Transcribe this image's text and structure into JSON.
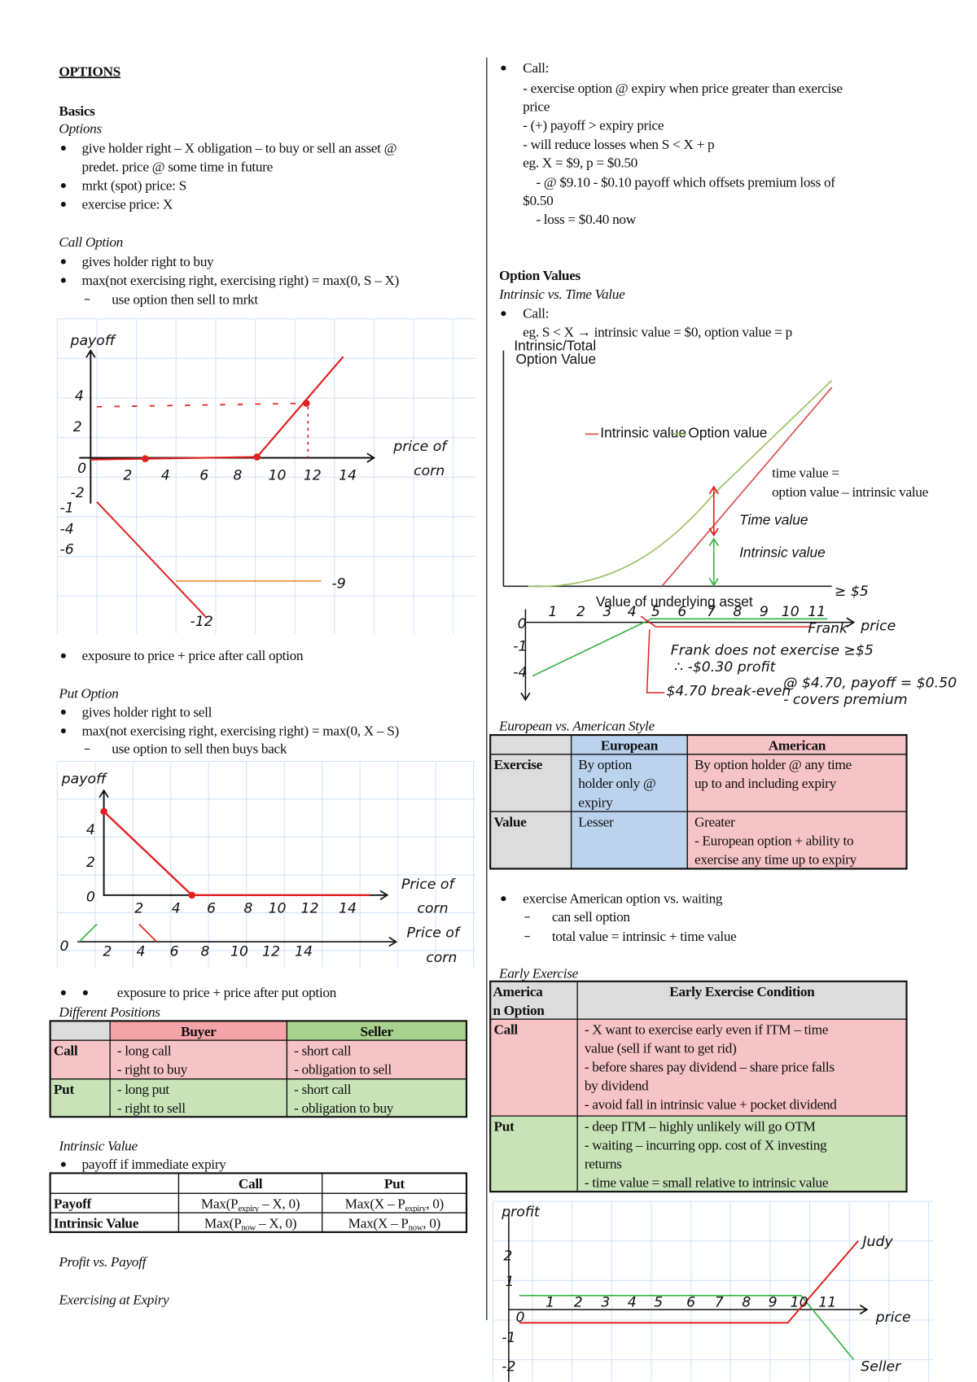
{
  "left": {
    "title": "OPTIONS",
    "basics": {
      "heading": "Basics",
      "subheading": "Options",
      "bullets": [
        [
          "give holder right – X obligation – to buy or sell an asset @",
          "predet. price @ some time in future"
        ],
        [
          "mrkt (spot) price: S"
        ],
        [
          "exercise price: X"
        ]
      ]
    },
    "call_option": {
      "heading": "Call Option",
      "bullets": [
        [
          "gives holder right to buy"
        ],
        [
          "max(not exercising right, exercising right) = max(0, S – X)"
        ]
      ],
      "sub_bullet": "use option then sell to mrkt",
      "diagram": {
        "y_label": "payoff",
        "x_label": [
          "price of",
          "corn"
        ],
        "y_ticks": [
          "4",
          "2",
          "0",
          "-2"
        ],
        "x_ticks": [
          "2",
          "4",
          "6",
          "8",
          "10",
          "12",
          "14"
        ],
        "lower_y_ticks": [
          "-1",
          "-4",
          "-6"
        ],
        "labels": [
          "-9",
          "-12"
        ]
      },
      "note": "exposure to price + price after call option"
    },
    "put_option": {
      "heading": "Put Option",
      "bullets": [
        [
          "gives holder right to sell"
        ],
        [
          "max(not exercising right, exercising right) = max(0, X – S)"
        ]
      ],
      "sub_bullet": "use option to sell then buys back",
      "diagram": {
        "y_label": "payoff",
        "x_label": [
          "Price of",
          "corn"
        ],
        "y_ticks": [
          "4",
          "2",
          "0"
        ],
        "x_ticks": [
          "2",
          "4",
          "6",
          "8",
          "10",
          "12",
          "14"
        ],
        "second_axis": {
          "origin": "0",
          "x_ticks": [
            "2",
            "4",
            "6",
            "8",
            "10",
            "12",
            "14"
          ],
          "x_label": [
            "Price of",
            "corn"
          ]
        }
      },
      "note": "exposure to price + price after put option"
    },
    "positions": {
      "heading": "Different Positions",
      "table": {
        "header": [
          "Buyer",
          "Seller"
        ],
        "rows": [
          {
            "label": "Call",
            "cells": [
              [
                "- long call",
                "- right to buy"
              ],
              [
                "- short call",
                "- obligation to sell"
              ]
            ]
          },
          {
            "label": "Put",
            "cells": [
              [
                "- long put",
                "- right to sell"
              ],
              [
                "- short call",
                "- obligation to buy"
              ]
            ]
          }
        ]
      }
    },
    "intrinsic": {
      "heading": "Intrinsic Value",
      "bullet": "payoff if immediate expiry",
      "table": {
        "header": [
          "Call",
          "Put"
        ],
        "rows": [
          {
            "label": "Payoff",
            "cells": [
              [
                "Max(P",
                "expiry",
                " – X, 0)"
              ],
              [
                "Max(X – P",
                "expiry",
                ", 0)"
              ]
            ]
          },
          {
            "label": "Intrinsic Value",
            "cells": [
              [
                "Max(P",
                "now",
                " – X, 0)"
              ],
              [
                "Max(X – P",
                "now",
                ", 0)"
              ]
            ]
          }
        ]
      }
    },
    "footer_headings": [
      "Profit vs. Payoff",
      "Exercising at Expiry"
    ]
  },
  "right": {
    "call": {
      "bullet": "Call:",
      "lines": [
        "- exercise option @ expiry when price greater than exercise",
        "price",
        "- (+) payoff > expiry price",
        "- will reduce losses when S < X + p",
        "eg. X = $9, p = $0.50",
        "- @ $9.10 - $0.10 payoff which offsets premium loss of",
        "$0.50",
        "- loss = $0.40 now"
      ]
    },
    "option_values": {
      "heading": "Option Values",
      "subheading": "Intrinsic vs. Time Value",
      "bullet": "Call:",
      "example": "eg. S < X → intrinsic value = $0, option value = p",
      "chart": {
        "y_label": [
          "Intrinsic/Total",
          "Option Value"
        ],
        "legend": [
          "Intrinsic value",
          "Option value"
        ],
        "x_label": "Value of underlying asset",
        "time_value_label": "Time value",
        "intrinsic_value_label": "Intrinsic value",
        "definition": [
          "time value =",
          "option value – intrinsic value"
        ],
        "note": "≥ $5"
      },
      "frank": {
        "x_label": "price",
        "x_ticks": [
          "1",
          "2",
          "3",
          "4",
          "5",
          "6",
          "7",
          "8",
          "9",
          "10",
          "11"
        ],
        "y_ticks": [
          "0",
          "-1",
          "-4"
        ],
        "series_label": "Frank",
        "notes": [
          "Frank does not exercise ≥$5",
          "∴ -$0.30 profit",
          "$4.70 break-even",
          "@ $4.70, payoff = $0.50",
          "- covers premium"
        ]
      }
    },
    "style": {
      "heading": "European vs. American Style",
      "table": {
        "header": [
          "European",
          "American"
        ],
        "rows": [
          {
            "label": "Exercise",
            "cells": [
              [
                "By option",
                "holder only @",
                "expiry"
              ],
              [
                "By option holder @ any time",
                "up to and including expiry"
              ]
            ]
          },
          {
            "label": "Value",
            "cells": [
              [
                "Lesser"
              ],
              [
                "Greater",
                "- European option + ability to",
                "exercise any time up to expiry"
              ]
            ]
          }
        ]
      }
    },
    "american": {
      "bullet": "exercise American option vs. waiting",
      "sub_bullets": [
        "can sell option",
        "total value = intrinsic + time value"
      ]
    },
    "early": {
      "heading": "Early Exercise",
      "table": {
        "corner": [
          "America",
          "n Option"
        ],
        "header": [
          "Early Exercise Condition"
        ],
        "rows": [
          {
            "label": "Call",
            "cells": [
              [
                "- X want to exercise early even if ITM – time",
                "value (sell if want to get rid)",
                "- before shares pay dividend – share price falls",
                "by dividend",
                "- avoid fall in intrinsic value + pocket dividend"
              ]
            ]
          },
          {
            "label": "Put",
            "cells": [
              [
                "- deep ITM – highly unlikely will go OTM",
                "- waiting – incurring opp. cost of X investing",
                "returns",
                "- time value = small relative to intrinsic value"
              ]
            ]
          }
        ]
      }
    },
    "profit_chart": {
      "y_label": "profit",
      "y_ticks": [
        "2",
        "1",
        "0",
        "-1",
        "-2"
      ],
      "x_ticks": [
        "1",
        "2",
        "3",
        "4",
        "5",
        "6",
        "7",
        "8",
        "9",
        "10",
        "11"
      ],
      "x_label": "price",
      "series_labels": [
        "Judy",
        "Seller"
      ]
    }
  }
}
